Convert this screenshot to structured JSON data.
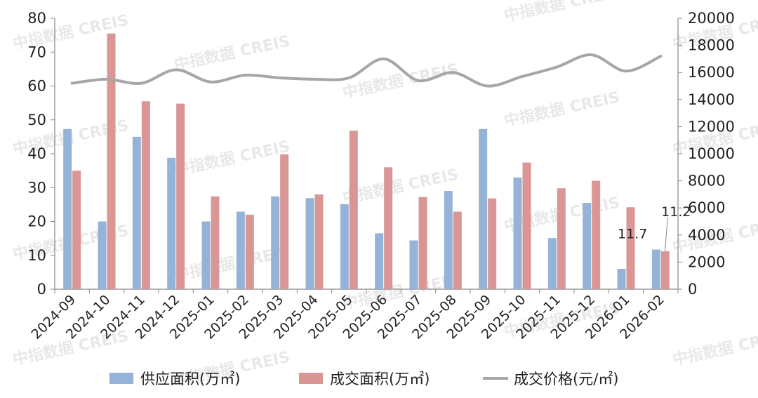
{
  "chart_data": {
    "type": "bar",
    "categories": [
      "2024-09",
      "2024-10",
      "2024-11",
      "2024-12",
      "2025-01",
      "2025-02",
      "2025-03",
      "2025-04",
      "2025-05",
      "2025-06",
      "2025-07",
      "2025-08",
      "2025-09",
      "2025-10",
      "2025-11",
      "2025-12",
      "2026-01",
      "2026-02"
    ],
    "series": [
      {
        "name": "供应面积(万㎡)",
        "kind": "bar",
        "axis": "left",
        "color": "#95b3d7",
        "values": [
          47.3,
          20,
          45,
          38.8,
          20,
          22.9,
          27.4,
          26.9,
          25.1,
          16.5,
          14.4,
          29,
          47.3,
          33,
          15.1,
          25.5,
          6,
          11.7
        ]
      },
      {
        "name": "成交面积(万㎡)",
        "kind": "bar",
        "axis": "left",
        "color": "#d99694",
        "values": [
          35,
          75.5,
          55.5,
          54.8,
          27.4,
          22,
          39.8,
          28,
          46.8,
          36,
          27.2,
          22.9,
          26.8,
          37.4,
          29.8,
          32,
          24.2,
          11.2
        ]
      },
      {
        "name": "成交价格(元/㎡)",
        "kind": "line",
        "axis": "right",
        "color": "#a6a6a6",
        "values": [
          15200,
          15500,
          15200,
          16200,
          15300,
          15800,
          15600,
          15500,
          15600,
          17000,
          15400,
          16000,
          15000,
          15700,
          16400,
          17300,
          16100,
          17200
        ]
      }
    ],
    "ylim_left": [
      0,
      80
    ],
    "yticks_left": [
      "0",
      "10",
      "20",
      "30",
      "40",
      "50",
      "60",
      "70",
      "80"
    ],
    "ylim_right": [
      0,
      20000
    ],
    "yticks_right": [
      "0",
      "2000",
      "4000",
      "6000",
      "8000",
      "10000",
      "12000",
      "14000",
      "16000",
      "18000",
      "20000"
    ],
    "annotations": [
      {
        "text": "11.7",
        "category": "2026-02",
        "series": "供应面积(万㎡)"
      },
      {
        "text": "11.2",
        "category": "2026-02",
        "series": "成交面积(万㎡)"
      }
    ],
    "legend_position": "bottom",
    "grid": false
  },
  "watermark": "中指数据 CREIS"
}
